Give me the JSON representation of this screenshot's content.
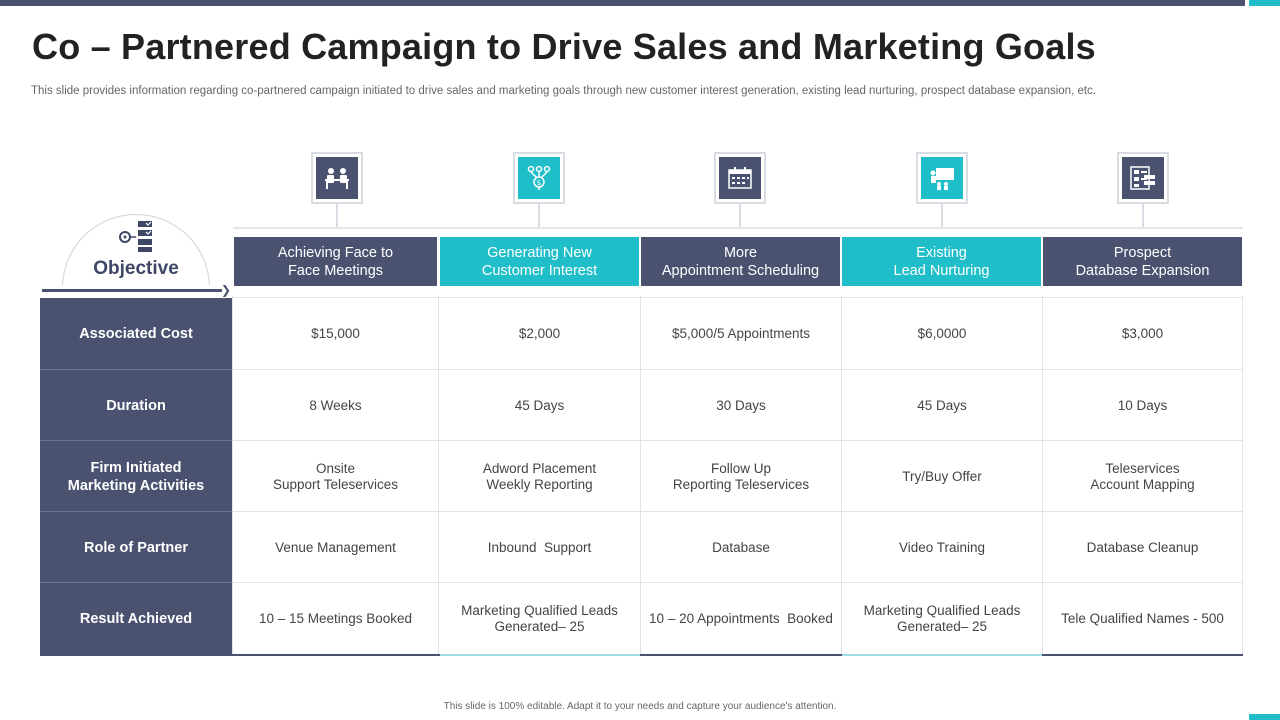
{
  "title": "Co – Partnered Campaign to Drive Sales and Marketing Goals",
  "subtitle": "This slide provides information regarding co-partnered campaign initiated to drive sales and marketing goals through new customer interest generation, existing lead nurturing, prospect database expansion, etc.",
  "objective_label": "Objective",
  "colors": {
    "dark": "#4a5270",
    "teal": "#1fbec9"
  },
  "columns": [
    {
      "label": "Achieving Face to\nFace Meetings",
      "style": "dark",
      "icon": "meeting-icon"
    },
    {
      "label": "Generating New\nCustomer Interest",
      "style": "teal",
      "icon": "network-icon"
    },
    {
      "label": "More\nAppointment Scheduling",
      "style": "dark",
      "icon": "calendar-icon"
    },
    {
      "label": "Existing\nLead  Nurturing",
      "style": "teal",
      "icon": "presentation-icon"
    },
    {
      "label": "Prospect\nDatabase Expansion",
      "style": "dark",
      "icon": "database-icon"
    }
  ],
  "rows": [
    {
      "label": "Associated Cost",
      "cells": [
        "$15,000",
        "$2,000",
        "$5,000/5 Appointments",
        "$6,0000",
        "$3,000"
      ]
    },
    {
      "label": "Duration",
      "cells": [
        "8 Weeks",
        "45 Days",
        "30 Days",
        "45 Days",
        "10 Days"
      ]
    },
    {
      "label": "Firm Initiated\nMarketing Activities",
      "cells": [
        "Onsite\nSupport Teleservices",
        "Adword Placement\nWeekly Reporting",
        "Follow Up\nReporting Teleservices",
        "Try/Buy Offer",
        "Teleservices\nAccount Mapping"
      ]
    },
    {
      "label": "Role of Partner",
      "cells": [
        "Venue Management",
        "Inbound  Support",
        "Database",
        "Video Training",
        "Database Cleanup"
      ]
    },
    {
      "label": "Result Achieved",
      "cells": [
        "10 – 15 Meetings Booked",
        "Marketing Qualified Leads\nGenerated– 25",
        "10 – 20 Appointments  Booked",
        "Marketing Qualified Leads\nGenerated– 25",
        "Tele Qualified Names - 500"
      ]
    }
  ],
  "footer": "This slide is 100% editable.  Adapt it to your needs and capture your audience's attention."
}
